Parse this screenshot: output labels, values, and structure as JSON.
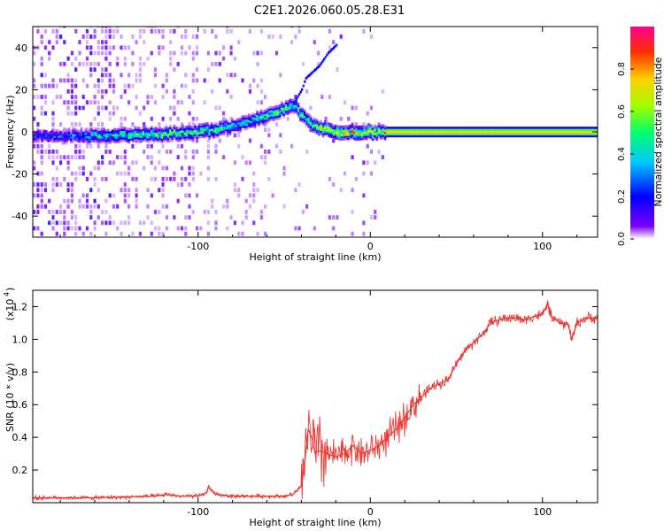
{
  "title": "C2E1.2026.060.05.28.E31",
  "chart_data": [
    {
      "type": "heatmap",
      "name": "spectrogram",
      "xlabel": "Height of straight line (km)",
      "ylabel": "Frequency (Hz)",
      "xlim": [
        -196,
        132
      ],
      "ylim": [
        -50,
        50
      ],
      "xticks": [
        -100,
        0,
        100
      ],
      "xtick_labels": [
        "-100",
        "0",
        "100"
      ],
      "yticks": [
        -40,
        -20,
        0,
        20,
        40
      ],
      "ytick_labels": [
        "-40",
        "-20",
        "0",
        "20",
        "40"
      ],
      "colorbar": {
        "label": "Normalized spectral amplitude",
        "range": [
          0,
          1
        ],
        "ticks": [
          0.0,
          0.2,
          0.4,
          0.6,
          0.8
        ],
        "tick_labels": [
          "0.0",
          "0.2",
          "0.4",
          "0.6",
          "0.8"
        ],
        "colormap": [
          "#ffffff",
          "#7b00ff",
          "#0000ff",
          "#00c8ff",
          "#00ff70",
          "#9cff00",
          "#ffd200",
          "#ff3000",
          "#ff0090"
        ]
      },
      "ridge": {
        "x": [
          -196,
          -180,
          -160,
          -140,
          -120,
          -100,
          -90,
          -80,
          -70,
          -60,
          -50,
          -45,
          -40,
          -35,
          -30,
          -25,
          -20,
          -15,
          -10,
          -5,
          0,
          5,
          8,
          20,
          40,
          60,
          80,
          100,
          120,
          132
        ],
        "y": [
          -2,
          -2,
          -2,
          -1.5,
          -1,
          0,
          1,
          3,
          5,
          8,
          11,
          13,
          8,
          4,
          2,
          1,
          0,
          0,
          0,
          0,
          0,
          0,
          0,
          0,
          0,
          0,
          0,
          0,
          0,
          0
        ],
        "amplitude": [
          0.25,
          0.3,
          0.45,
          0.5,
          0.55,
          0.55,
          0.5,
          0.45,
          0.45,
          0.5,
          0.55,
          0.6,
          0.5,
          0.55,
          0.6,
          0.7,
          0.75,
          0.8,
          0.8,
          0.7,
          0.7,
          0.6,
          0.75,
          0.75,
          0.75,
          0.75,
          0.75,
          0.75,
          0.75,
          0.75
        ]
      },
      "diagonal_branch": {
        "x": [
          -45,
          -40,
          -38,
          -30,
          -25,
          -20
        ],
        "y": [
          13,
          20,
          25,
          31,
          37,
          41
        ]
      }
    },
    {
      "type": "line",
      "name": "snr",
      "xlabel": "Height of straight line (km)",
      "ylabel": "SNR (10 * v/v)",
      "y_scale_label": "(x10",
      "y_scale_exponent": "4",
      "xlim": [
        -196,
        132
      ],
      "ylim": [
        0,
        1.3
      ],
      "xticks": [
        -100,
        0,
        100
      ],
      "xtick_labels": [
        "-100",
        "0",
        "100"
      ],
      "yticks": [
        0.2,
        0.4,
        0.6,
        0.8,
        1.0,
        1.2
      ],
      "ytick_labels": [
        "0.2",
        "0.4",
        "0.6",
        "0.8",
        "1.0",
        "1.2"
      ],
      "series": [
        {
          "name": "SNR",
          "color": "#e83a35",
          "x": [
            -196,
            -180,
            -160,
            -140,
            -125,
            -118,
            -110,
            -100,
            -95,
            -94,
            -90,
            -80,
            -70,
            -60,
            -50,
            -45,
            -40,
            -38,
            -36,
            -34,
            -32,
            -30,
            -25,
            -20,
            -15,
            -10,
            -5,
            0,
            5,
            10,
            15,
            20,
            25,
            30,
            35,
            40,
            45,
            50,
            55,
            60,
            65,
            70,
            75,
            80,
            85,
            90,
            95,
            100,
            103,
            105,
            110,
            115,
            117,
            120,
            125,
            132
          ],
          "y": [
            0.03,
            0.03,
            0.03,
            0.035,
            0.04,
            0.05,
            0.04,
            0.04,
            0.06,
            0.1,
            0.05,
            0.04,
            0.04,
            0.04,
            0.04,
            0.05,
            0.1,
            0.25,
            0.45,
            0.4,
            0.3,
            0.32,
            0.3,
            0.28,
            0.3,
            0.35,
            0.3,
            0.32,
            0.35,
            0.4,
            0.45,
            0.52,
            0.6,
            0.65,
            0.7,
            0.73,
            0.75,
            0.85,
            0.93,
            0.98,
            1.03,
            1.1,
            1.12,
            1.13,
            1.13,
            1.12,
            1.14,
            1.15,
            1.22,
            1.14,
            1.1,
            1.09,
            1.0,
            1.1,
            1.13,
            1.13
          ]
        }
      ]
    }
  ]
}
